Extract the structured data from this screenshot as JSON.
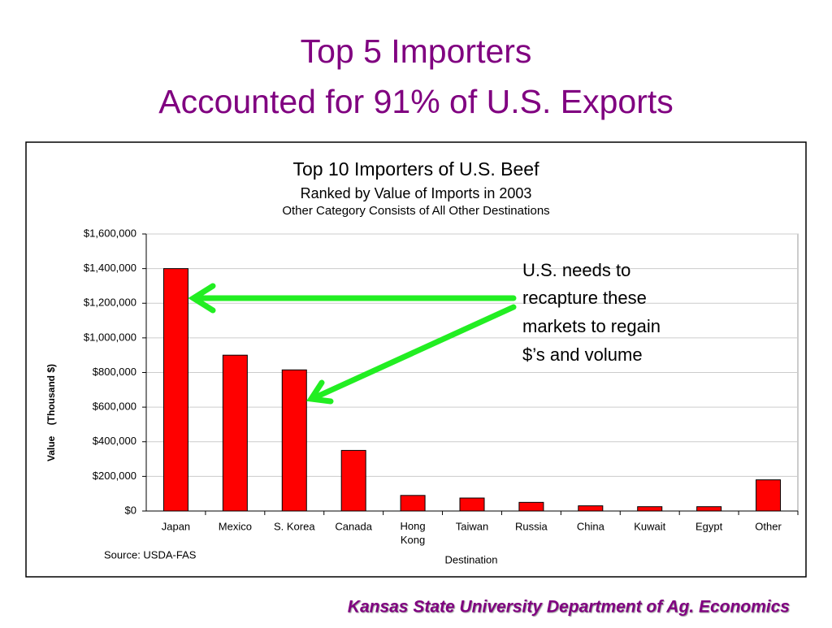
{
  "slide": {
    "title_lines": [
      "Top 5 Importers",
      "Accounted for 91% of U.S. Exports"
    ],
    "footer": "Kansas State University Department of Ag. Economics"
  },
  "chart_data": {
    "type": "bar",
    "title": "Top 10 Importers of U.S. Beef",
    "subtitle": "Ranked by Value of Imports in 2003",
    "subtitle2": "Other Category Consists of All Other Destinations",
    "y_label": "Value    (Thousand $)",
    "x_label": "Destination",
    "source": "Source: USDA-FAS",
    "annotation_lines": [
      "U.S. needs to",
      "recapture these",
      "markets to regain",
      "$’s and volume"
    ],
    "categories": [
      "Japan",
      "Mexico",
      "S. Korea",
      "Canada",
      "Hong Kong",
      "Taiwan",
      "Russia",
      "China",
      "Kuwait",
      "Egypt",
      "Other"
    ],
    "values": [
      1400000,
      900000,
      815000,
      350000,
      90000,
      75000,
      50000,
      30000,
      25000,
      25000,
      180000
    ],
    "color": "#ff0000",
    "ylim": [
      0,
      1600000
    ],
    "yticks": [
      {
        "value": 0,
        "label": "$0"
      },
      {
        "value": 200000,
        "label": "$200,000"
      },
      {
        "value": 400000,
        "label": "$400,000"
      },
      {
        "value": 600000,
        "label": "$600,000"
      },
      {
        "value": 800000,
        "label": "$800,000"
      },
      {
        "value": 1000000,
        "label": "$1,000,000"
      },
      {
        "value": 1200000,
        "label": "$1,200,000"
      },
      {
        "value": 1400000,
        "label": "$1,400,000"
      },
      {
        "value": 1600000,
        "label": "$1,600,000"
      }
    ],
    "grid": true
  }
}
